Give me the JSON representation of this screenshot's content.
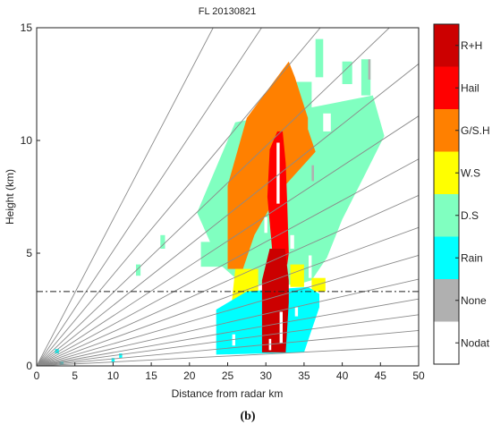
{
  "chart_data": {
    "type": "heatmap",
    "title": "FL 20130821",
    "xlabel": "Distance from radar km",
    "ylabel": "Height (km)",
    "xlim": [
      0,
      50
    ],
    "ylim": [
      0,
      15
    ],
    "xticks": [
      "0",
      "5",
      "10",
      "15",
      "20",
      "25",
      "30",
      "35",
      "40",
      "45",
      "50"
    ],
    "yticks": [
      "0",
      "5",
      "10",
      "15"
    ],
    "reference_line_height_km": 3.3,
    "colorbar": {
      "labels": [
        "R+H",
        "Hail",
        "G/S.H",
        "W.S",
        "D.S",
        "Rain",
        "None",
        "Nodat"
      ],
      "colors": [
        "#cc0000",
        "#ff0000",
        "#ff8000",
        "#ffff00",
        "#80ffc0",
        "#00ffff",
        "#b0b0b0",
        "#ffffff"
      ]
    },
    "elevation_angles_deg": [
      1.0,
      1.8,
      2.6,
      3.4,
      4.4,
      5.6,
      7.0,
      8.6,
      10.4,
      12.5,
      15.0,
      18.0,
      22.0,
      27.0,
      33.0
    ],
    "regions": [
      {
        "class": "D.S",
        "polygon": [
          [
            21,
            6.8
          ],
          [
            26,
            10.8
          ],
          [
            32,
            11.2
          ],
          [
            44,
            12.0
          ],
          [
            45.5,
            10.2
          ],
          [
            43,
            8.5
          ],
          [
            40,
            6.5
          ],
          [
            38,
            4.8
          ],
          [
            36,
            3.8
          ],
          [
            34,
            3.6
          ],
          [
            27,
            3.6
          ],
          [
            24,
            4.5
          ]
        ]
      },
      {
        "class": "D.S",
        "polygon": [
          [
            34,
            12.6
          ],
          [
            36,
            12.6
          ],
          [
            36,
            11.0
          ],
          [
            34,
            11.0
          ]
        ]
      },
      {
        "class": "D.S",
        "polygon": [
          [
            36.5,
            14.5
          ],
          [
            37.5,
            14.5
          ],
          [
            37.5,
            12.8
          ],
          [
            36.5,
            12.8
          ]
        ]
      },
      {
        "class": "D.S",
        "polygon": [
          [
            40,
            13.5
          ],
          [
            41.3,
            13.5
          ],
          [
            41.3,
            12.5
          ],
          [
            40,
            12.5
          ]
        ]
      },
      {
        "class": "D.S",
        "polygon": [
          [
            42.5,
            13.6
          ],
          [
            43.7,
            13.6
          ],
          [
            43.7,
            12.0
          ],
          [
            42.5,
            12.0
          ]
        ]
      },
      {
        "class": "D.S",
        "polygon": [
          [
            21.5,
            5.5
          ],
          [
            25,
            5.5
          ],
          [
            25,
            4.4
          ],
          [
            21.5,
            4.4
          ]
        ]
      },
      {
        "class": "D.S",
        "polygon": [
          [
            13,
            4.5
          ],
          [
            13.6,
            4.5
          ],
          [
            13.6,
            4.0
          ],
          [
            13,
            4.0
          ]
        ]
      },
      {
        "class": "D.S",
        "polygon": [
          [
            16.2,
            5.8
          ],
          [
            16.8,
            5.8
          ],
          [
            16.8,
            5.2
          ],
          [
            16.2,
            5.2
          ]
        ]
      },
      {
        "class": "G/S.H",
        "polygon": [
          [
            25,
            8.0
          ],
          [
            27.5,
            11.0
          ],
          [
            33,
            13.5
          ],
          [
            33.8,
            12.8
          ],
          [
            35.5,
            11.0
          ],
          [
            35.5,
            10.5
          ],
          [
            36.5,
            9.5
          ],
          [
            32.5,
            8.0
          ],
          [
            30.5,
            7.0
          ],
          [
            28.5,
            5.8
          ],
          [
            27,
            4.3
          ],
          [
            25,
            4.3
          ]
        ]
      },
      {
        "class": "W.S",
        "polygon": [
          [
            26,
            4.3
          ],
          [
            29,
            4.3
          ],
          [
            29,
            3.2
          ],
          [
            25.5,
            2.7
          ]
        ]
      },
      {
        "class": "W.S",
        "polygon": [
          [
            33.2,
            4.5
          ],
          [
            35,
            4.5
          ],
          [
            35,
            3.5
          ],
          [
            33.2,
            3.5
          ]
        ]
      },
      {
        "class": "W.S",
        "polygon": [
          [
            36,
            3.9
          ],
          [
            37.8,
            3.9
          ],
          [
            37.8,
            3.3
          ],
          [
            36,
            3.3
          ]
        ]
      },
      {
        "class": "Rain",
        "polygon": [
          [
            23.5,
            0.5
          ],
          [
            23.5,
            2.5
          ],
          [
            25.5,
            2.9
          ],
          [
            27.5,
            3.3
          ],
          [
            35.5,
            3.5
          ],
          [
            37,
            3.2
          ],
          [
            37,
            2.6
          ],
          [
            36,
            1.6
          ],
          [
            35,
            0.6
          ]
        ]
      },
      {
        "class": "Rain",
        "polygon": [
          [
            9.8,
            0.35
          ],
          [
            10.2,
            0.35
          ],
          [
            10.2,
            0.15
          ],
          [
            9.8,
            0.15
          ]
        ]
      },
      {
        "class": "Rain",
        "polygon": [
          [
            10.8,
            0.55
          ],
          [
            11.2,
            0.55
          ],
          [
            11.2,
            0.35
          ],
          [
            10.8,
            0.35
          ]
        ]
      },
      {
        "class": "Rain",
        "polygon": [
          [
            2.4,
            0.75
          ],
          [
            2.9,
            0.75
          ],
          [
            2.9,
            0.55
          ],
          [
            2.4,
            0.55
          ]
        ]
      },
      {
        "class": "Rain",
        "polygon": [
          [
            3.0,
            0.2
          ],
          [
            3.5,
            0.2
          ],
          [
            3.5,
            0.05
          ],
          [
            3.0,
            0.05
          ]
        ]
      },
      {
        "class": "Hail",
        "polygon": [
          [
            30.2,
            7.5
          ],
          [
            30.5,
            9.6
          ],
          [
            31.5,
            10.4
          ],
          [
            32.2,
            10.4
          ],
          [
            32.6,
            9.0
          ],
          [
            32.8,
            7.2
          ],
          [
            33,
            5.0
          ],
          [
            32.8,
            4.5
          ],
          [
            31.0,
            4.5
          ]
        ]
      },
      {
        "class": "R+H",
        "polygon": [
          [
            29.5,
            0.6
          ],
          [
            29.5,
            3.8
          ],
          [
            30.5,
            5.2
          ],
          [
            32.5,
            5.2
          ],
          [
            33,
            3.8
          ],
          [
            33,
            2.8
          ],
          [
            32.6,
            0.6
          ]
        ]
      },
      {
        "class": "None",
        "polygon": [
          [
            43.4,
            13.6
          ],
          [
            43.7,
            13.6
          ],
          [
            43.7,
            12.7
          ],
          [
            43.4,
            12.7
          ]
        ]
      },
      {
        "class": "None",
        "polygon": [
          [
            36,
            8.9
          ],
          [
            36.3,
            8.9
          ],
          [
            36.3,
            8.2
          ],
          [
            36,
            8.2
          ]
        ]
      },
      {
        "class": "Nodat",
        "polygon": [
          [
            37.5,
            11.2
          ],
          [
            38.5,
            11.2
          ],
          [
            38.5,
            10.4
          ],
          [
            37.5,
            10.4
          ]
        ]
      },
      {
        "class": "Nodat",
        "polygon": [
          [
            31.4,
            9.9
          ],
          [
            31.8,
            9.9
          ],
          [
            31.8,
            7.2
          ],
          [
            31.4,
            7.2
          ]
        ]
      },
      {
        "class": "Nodat",
        "polygon": [
          [
            29.8,
            6.6
          ],
          [
            30.2,
            6.6
          ],
          [
            30.2,
            5.9
          ],
          [
            29.8,
            5.9
          ]
        ]
      },
      {
        "class": "Nodat",
        "polygon": [
          [
            33.2,
            5.8
          ],
          [
            33.7,
            5.8
          ],
          [
            33.7,
            5.2
          ],
          [
            33.2,
            5.2
          ]
        ]
      },
      {
        "class": "Nodat",
        "polygon": [
          [
            35.6,
            4.9
          ],
          [
            36.0,
            4.9
          ],
          [
            36.0,
            3.9
          ],
          [
            35.6,
            3.9
          ]
        ]
      },
      {
        "class": "Nodat",
        "polygon": [
          [
            25.6,
            1.4
          ],
          [
            26.0,
            1.4
          ],
          [
            26.0,
            0.9
          ],
          [
            25.6,
            0.9
          ]
        ]
      },
      {
        "class": "Nodat",
        "polygon": [
          [
            31.8,
            2.4
          ],
          [
            32.2,
            2.4
          ],
          [
            32.2,
            1.0
          ],
          [
            31.8,
            1.0
          ]
        ]
      },
      {
        "class": "Nodat",
        "polygon": [
          [
            33.8,
            2.6
          ],
          [
            34.2,
            2.6
          ],
          [
            34.2,
            2.2
          ],
          [
            33.8,
            2.2
          ]
        ]
      },
      {
        "class": "Nodat",
        "polygon": [
          [
            30.4,
            1.2
          ],
          [
            30.7,
            1.2
          ],
          [
            30.7,
            0.7
          ],
          [
            30.4,
            0.7
          ]
        ]
      }
    ]
  },
  "caption": "(b)"
}
